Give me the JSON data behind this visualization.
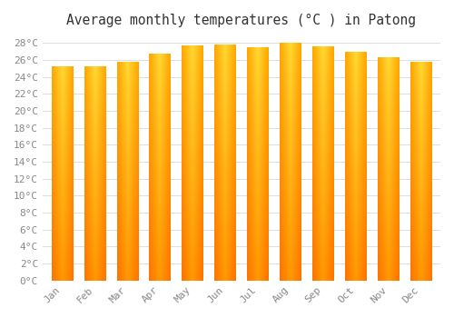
{
  "title": "Average monthly temperatures (°C ) in Patong",
  "months": [
    "Jan",
    "Feb",
    "Mar",
    "Apr",
    "May",
    "Jun",
    "Jul",
    "Aug",
    "Sep",
    "Oct",
    "Nov",
    "Dec"
  ],
  "temperatures": [
    25.2,
    25.2,
    25.8,
    26.7,
    27.7,
    27.8,
    27.5,
    28.0,
    27.6,
    27.0,
    26.3,
    25.8
  ],
  "bar_color_center": "#FFD966",
  "bar_color_edge": "#F0A500",
  "bar_color_bottom": "#E08800",
  "background_color": "#FFFFFF",
  "plot_bg_color": "#FFFFFF",
  "grid_color": "#DDDDDD",
  "ylim": [
    0,
    29
  ],
  "yticks": [
    0,
    2,
    4,
    6,
    8,
    10,
    12,
    14,
    16,
    18,
    20,
    22,
    24,
    26,
    28
  ],
  "ytick_labels": [
    "0°C",
    "2°C",
    "4°C",
    "6°C",
    "8°C",
    "10°C",
    "12°C",
    "14°C",
    "16°C",
    "18°C",
    "20°C",
    "22°C",
    "24°C",
    "26°C",
    "28°C"
  ],
  "title_fontsize": 10.5,
  "tick_fontsize": 8
}
